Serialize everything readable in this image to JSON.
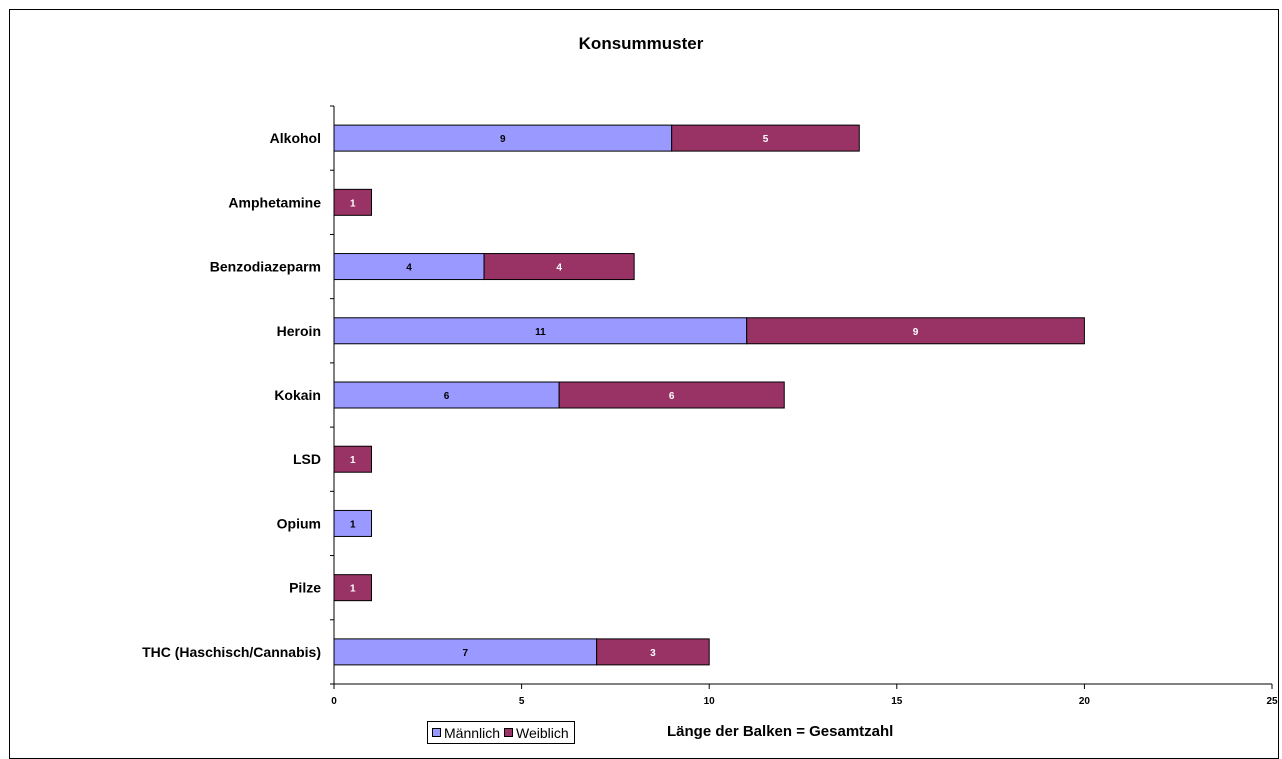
{
  "chart_data": {
    "type": "bar",
    "orientation": "horizontal",
    "stacked": true,
    "title": "Konsummuster",
    "categories": [
      "Alkohol",
      "Amphetamine",
      "Benzodiazeparm",
      "Heroin",
      "Kokain",
      "LSD",
      "Opium",
      "Pilze",
      "THC (Haschisch/Cannabis)"
    ],
    "series": [
      {
        "name": "Männlich",
        "color": "#9999ff",
        "values": [
          9,
          0,
          4,
          11,
          6,
          0,
          1,
          0,
          7
        ]
      },
      {
        "name": "Weiblich",
        "color": "#993366",
        "values": [
          5,
          1,
          4,
          9,
          6,
          1,
          0,
          1,
          3
        ]
      }
    ],
    "xlim": [
      0,
      25
    ],
    "xticks": [
      0,
      5,
      10,
      15,
      20,
      25
    ],
    "grid": false,
    "legend": "bottom"
  },
  "footnote": "Länge der Balken = Gesamtzahl"
}
